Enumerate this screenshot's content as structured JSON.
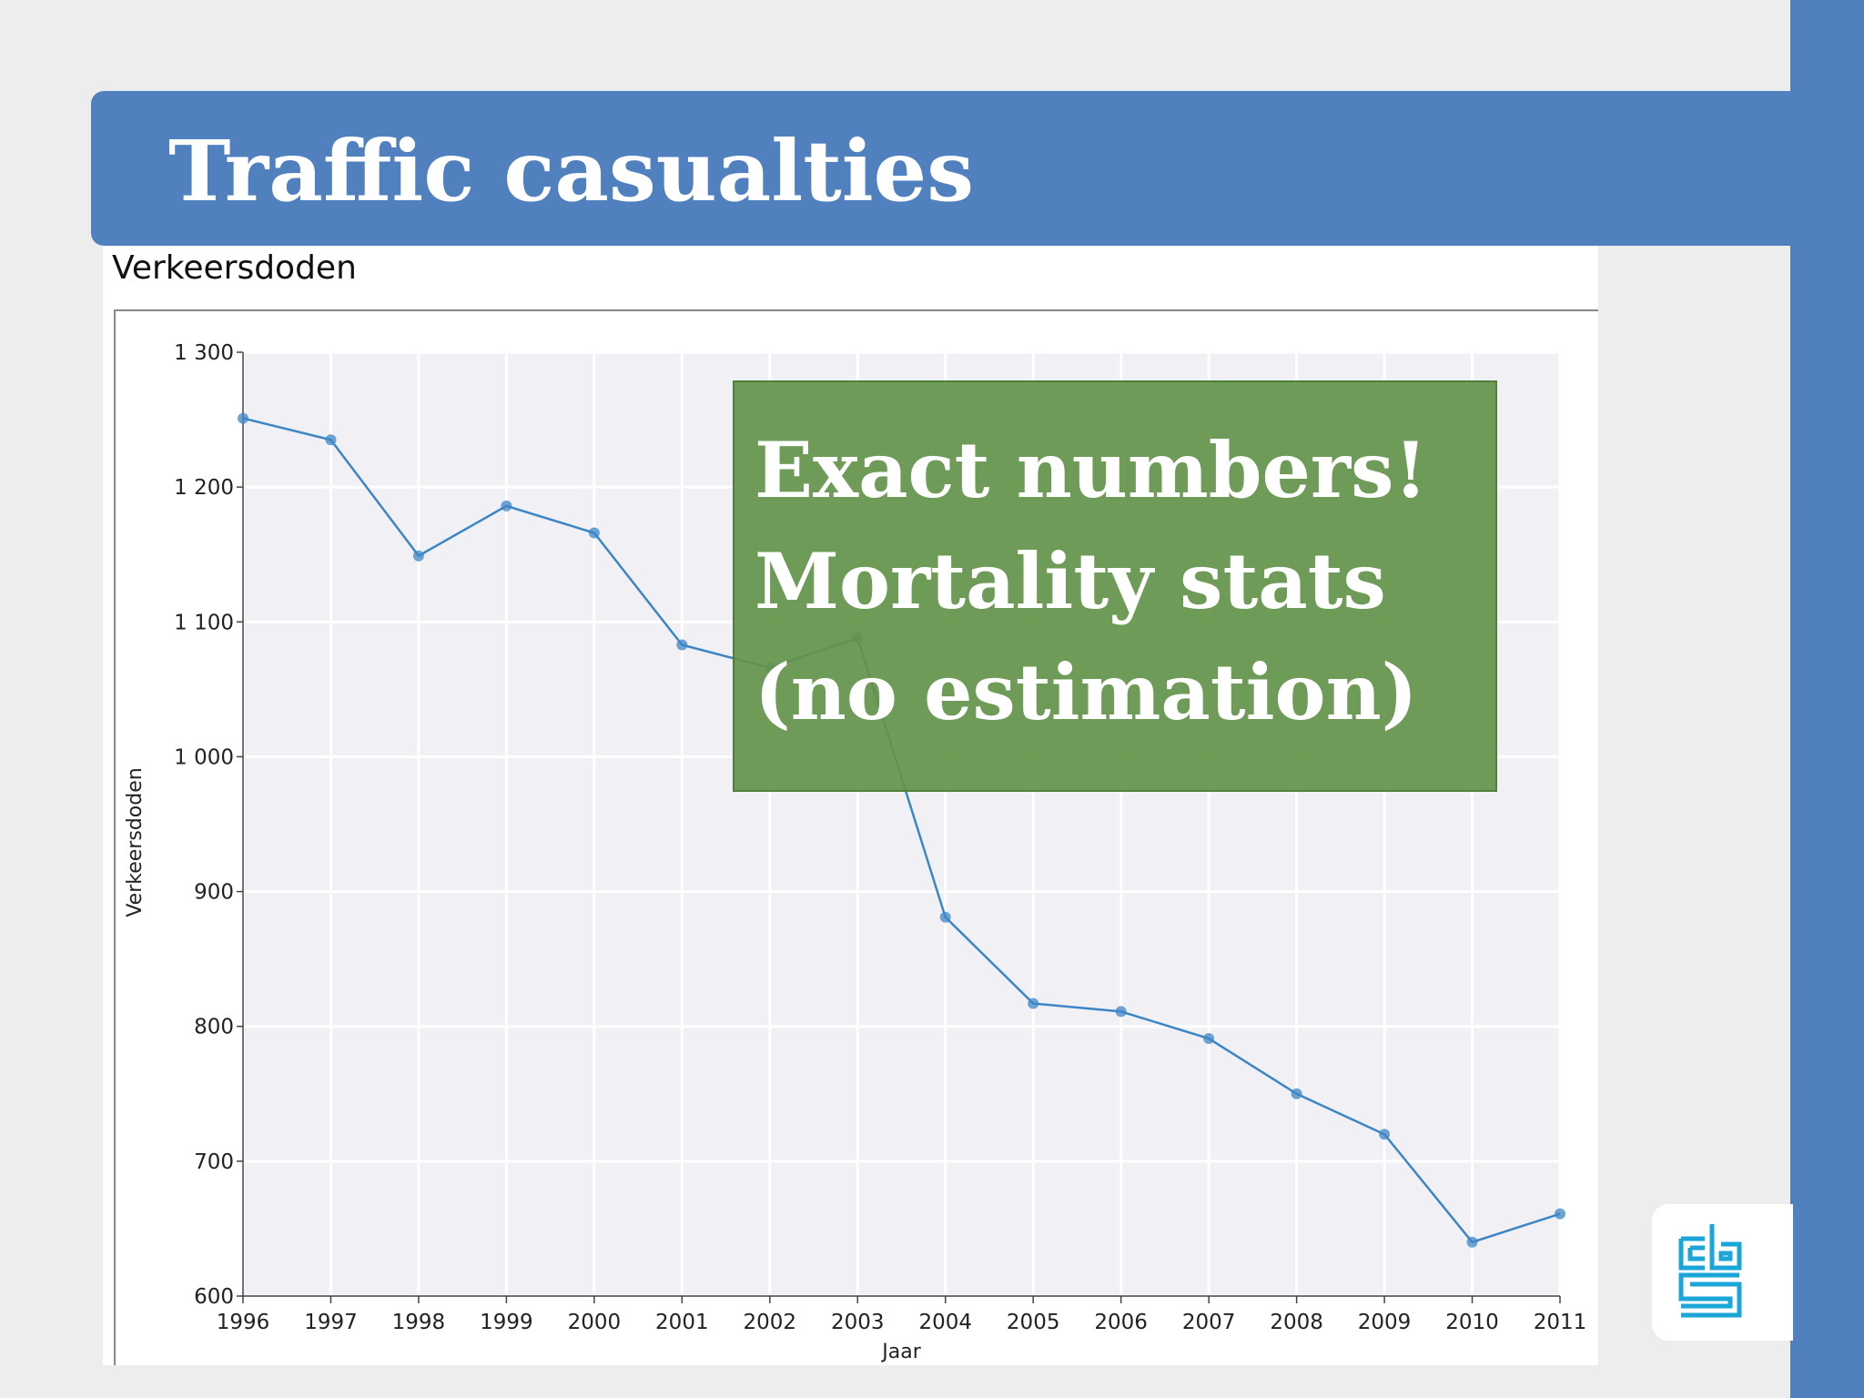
{
  "slide": {
    "title": "Traffic casualties",
    "callout_lines": [
      "Exact numbers!",
      "Mortality stats",
      "(no estimation)"
    ],
    "colors": {
      "accent_blue": "#5080be",
      "callout_green": "#64944a",
      "series_line": "#3d86c6",
      "logo_cyan": "#1aa6d9"
    },
    "logo_icon": "cbs-logo-icon"
  },
  "chart_data": {
    "type": "line",
    "title": "Verkeersdoden",
    "xlabel": "Jaar",
    "ylabel": "Verkeersdoden",
    "x": [
      "1996",
      "1997",
      "1998",
      "1999",
      "2000",
      "2001",
      "2002",
      "2003",
      "2004",
      "2005",
      "2006",
      "2007",
      "2008",
      "2009",
      "2010",
      "2011"
    ],
    "series": [
      {
        "values": [
          1251,
          1235,
          1149,
          1186,
          1166,
          1083,
          1066,
          1088,
          881,
          817,
          811,
          791,
          750,
          720,
          640,
          661
        ]
      }
    ],
    "ylim": [
      600,
      1300
    ],
    "y_ticks": [
      "600",
      "700",
      "800",
      "900",
      "1 000",
      "1 100",
      "1 200",
      "1 300"
    ],
    "grid": true,
    "legend": "none"
  }
}
